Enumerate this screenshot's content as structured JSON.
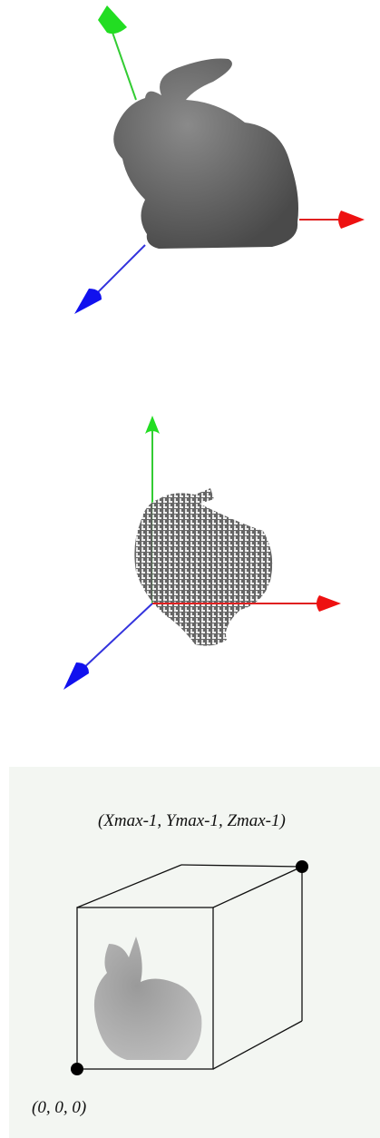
{
  "labels": {
    "top_corner": "(Xmax-1, Ymax-1, Zmax-1)",
    "origin": "(0, 0, 0)"
  }
}
